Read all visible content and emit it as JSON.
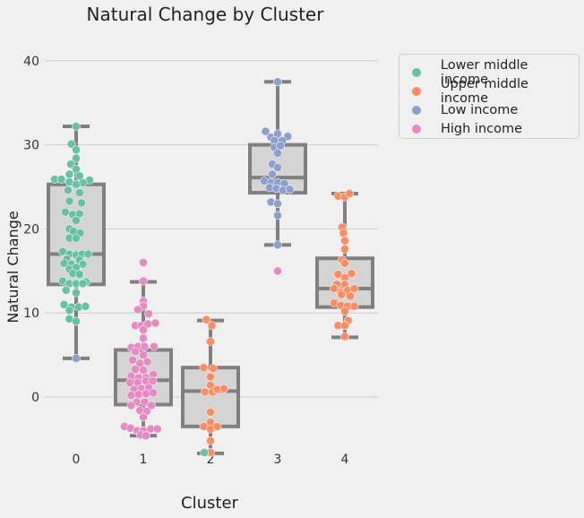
{
  "chart_data": {
    "type": "boxplot",
    "title": "Natural Change by Cluster",
    "xlabel": "Cluster",
    "ylabel": "Natural Change",
    "categories": [
      "0",
      "1",
      "2",
      "3",
      "4"
    ],
    "ylim": [
      -9.5,
      44
    ],
    "yticks": [
      0,
      10,
      20,
      30,
      40
    ],
    "grid": "horizontal",
    "legend_position": "outside-right",
    "box_color": "#d4d4d4",
    "box_edge_color": "#808080",
    "boxes": [
      {
        "category": "0",
        "whisker_low": 4.6,
        "q1": 13.4,
        "median": 17.0,
        "q3": 25.3,
        "whisker_high": 32.2
      },
      {
        "category": "1",
        "whisker_low": -4.6,
        "q1": -0.9,
        "median": 2.0,
        "q3": 5.6,
        "whisker_high": 13.7
      },
      {
        "category": "2",
        "whisker_low": -6.7,
        "q1": -3.5,
        "median": 0.7,
        "q3": 3.5,
        "whisker_high": 9.1
      },
      {
        "category": "3",
        "whisker_low": 18.1,
        "q1": 24.3,
        "median": 26.1,
        "q3": 30.0,
        "whisker_high": 37.5
      },
      {
        "category": "4",
        "whisker_low": 7.1,
        "q1": 10.7,
        "median": 12.9,
        "q3": 16.5,
        "whisker_high": 24.2
      }
    ],
    "series": [
      {
        "name": "Lower middle income",
        "color": "#66c2a5"
      },
      {
        "name": "Upper middle income",
        "color": "#fc8d62"
      },
      {
        "name": "Low income",
        "color": "#8da0cb"
      },
      {
        "name": "High income",
        "color": "#e78ac3"
      }
    ],
    "points": [
      {
        "cat": 0,
        "s": 0,
        "o": 0.0,
        "y": 32.2
      },
      {
        "cat": 0,
        "s": 0,
        "o": -0.07,
        "y": 30.1
      },
      {
        "cat": 0,
        "s": 0,
        "o": 0.0,
        "y": 29.4
      },
      {
        "cat": 0,
        "s": 0,
        "o": 0.0,
        "y": 28.4
      },
      {
        "cat": 0,
        "s": 0,
        "o": -0.08,
        "y": 27.7
      },
      {
        "cat": 0,
        "s": 0,
        "o": 0.0,
        "y": 27.1
      },
      {
        "cat": 0,
        "s": 0,
        "o": -0.1,
        "y": 26.5
      },
      {
        "cat": 0,
        "s": 0,
        "o": 0.05,
        "y": 26.3
      },
      {
        "cat": 0,
        "s": 0,
        "o": -0.32,
        "y": 25.9
      },
      {
        "cat": 0,
        "s": 0,
        "o": -0.22,
        "y": 25.9
      },
      {
        "cat": 0,
        "s": 0,
        "o": 0.2,
        "y": 25.8
      },
      {
        "cat": 0,
        "s": 0,
        "o": -0.1,
        "y": 25.6
      },
      {
        "cat": 0,
        "s": 0,
        "o": 0.1,
        "y": 25.5
      },
      {
        "cat": 0,
        "s": 0,
        "o": 0.0,
        "y": 25.3
      },
      {
        "cat": 0,
        "s": 0,
        "o": -0.12,
        "y": 24.6
      },
      {
        "cat": 0,
        "s": 0,
        "o": 0.05,
        "y": 24.3
      },
      {
        "cat": 0,
        "s": 0,
        "o": -0.1,
        "y": 23.3
      },
      {
        "cat": 0,
        "s": 0,
        "o": 0.08,
        "y": 23.1
      },
      {
        "cat": 0,
        "s": 0,
        "o": -0.16,
        "y": 22.0
      },
      {
        "cat": 0,
        "s": 0,
        "o": -0.05,
        "y": 21.7
      },
      {
        "cat": 0,
        "s": 0,
        "o": 0.05,
        "y": 21.8
      },
      {
        "cat": 0,
        "s": 0,
        "o": 0.0,
        "y": 21.0
      },
      {
        "cat": 0,
        "s": 0,
        "o": -0.1,
        "y": 20.0
      },
      {
        "cat": 0,
        "s": 0,
        "o": -0.04,
        "y": 19.7
      },
      {
        "cat": 0,
        "s": 0,
        "o": 0.06,
        "y": 19.5
      },
      {
        "cat": 0,
        "s": 0,
        "o": -0.1,
        "y": 18.9
      },
      {
        "cat": 0,
        "s": 0,
        "o": 0.0,
        "y": 18.9
      },
      {
        "cat": 0,
        "s": 0,
        "o": -0.2,
        "y": 17.3
      },
      {
        "cat": 0,
        "s": 0,
        "o": -0.1,
        "y": 17.0
      },
      {
        "cat": 0,
        "s": 0,
        "o": 0.0,
        "y": 16.9
      },
      {
        "cat": 0,
        "s": 0,
        "o": 0.09,
        "y": 17.0
      },
      {
        "cat": 0,
        "s": 0,
        "o": 0.18,
        "y": 17.0
      },
      {
        "cat": 0,
        "s": 0,
        "o": -0.14,
        "y": 16.4
      },
      {
        "cat": 0,
        "s": 0,
        "o": 0.05,
        "y": 16.3
      },
      {
        "cat": 0,
        "s": 0,
        "o": -0.18,
        "y": 15.9
      },
      {
        "cat": 0,
        "s": 0,
        "o": -0.07,
        "y": 15.8
      },
      {
        "cat": 0,
        "s": 0,
        "o": 0.1,
        "y": 15.8
      },
      {
        "cat": 0,
        "s": 0,
        "o": -0.1,
        "y": 15.2
      },
      {
        "cat": 0,
        "s": 0,
        "o": 0.0,
        "y": 15.4
      },
      {
        "cat": 0,
        "s": 0,
        "o": -0.05,
        "y": 14.7
      },
      {
        "cat": 0,
        "s": 0,
        "o": 0.05,
        "y": 14.6
      },
      {
        "cat": 0,
        "s": 0,
        "o": -0.2,
        "y": 13.8
      },
      {
        "cat": 0,
        "s": 0,
        "o": 0.15,
        "y": 13.7
      },
      {
        "cat": 0,
        "s": 0,
        "o": -0.1,
        "y": 13.5
      },
      {
        "cat": 0,
        "s": 0,
        "o": 0.0,
        "y": 13.5
      },
      {
        "cat": 0,
        "s": 0,
        "o": 0.1,
        "y": 13.5
      },
      {
        "cat": 0,
        "s": 0,
        "o": -0.15,
        "y": 12.7
      },
      {
        "cat": 0,
        "s": 0,
        "o": 0.0,
        "y": 12.4
      },
      {
        "cat": 0,
        "s": 0,
        "o": -0.18,
        "y": 11.0
      },
      {
        "cat": 0,
        "s": 0,
        "o": -0.07,
        "y": 10.7
      },
      {
        "cat": 0,
        "s": 0,
        "o": 0.04,
        "y": 10.7
      },
      {
        "cat": 0,
        "s": 0,
        "o": 0.14,
        "y": 10.8
      },
      {
        "cat": 0,
        "s": 0,
        "o": -0.1,
        "y": 10.3
      },
      {
        "cat": 0,
        "s": 0,
        "o": -0.1,
        "y": 9.3
      },
      {
        "cat": 0,
        "s": 0,
        "o": 0.0,
        "y": 9.0
      },
      {
        "cat": 0,
        "s": 2,
        "o": 0.0,
        "y": 4.6
      },
      {
        "cat": 1,
        "s": 3,
        "o": 0.0,
        "y": 16.0
      },
      {
        "cat": 1,
        "s": 3,
        "o": 0.0,
        "y": 13.8
      },
      {
        "cat": 1,
        "s": 3,
        "o": 0.0,
        "y": 11.4
      },
      {
        "cat": 1,
        "s": 3,
        "o": 0.0,
        "y": 10.8
      },
      {
        "cat": 1,
        "s": 3,
        "o": -0.08,
        "y": 10.4
      },
      {
        "cat": 1,
        "s": 3,
        "o": 0.08,
        "y": 9.9
      },
      {
        "cat": 1,
        "s": 3,
        "o": -0.12,
        "y": 8.5
      },
      {
        "cat": 1,
        "s": 3,
        "o": -0.03,
        "y": 8.5
      },
      {
        "cat": 1,
        "s": 3,
        "o": 0.07,
        "y": 8.7
      },
      {
        "cat": 1,
        "s": 3,
        "o": 0.18,
        "y": 8.8
      },
      {
        "cat": 1,
        "s": 3,
        "o": 0.0,
        "y": 8.0
      },
      {
        "cat": 1,
        "s": 3,
        "o": 0.0,
        "y": 7.0
      },
      {
        "cat": 1,
        "s": 3,
        "o": -0.18,
        "y": 5.9
      },
      {
        "cat": 1,
        "s": 3,
        "o": -0.08,
        "y": 6.0
      },
      {
        "cat": 1,
        "s": 3,
        "o": 0.02,
        "y": 6.0
      },
      {
        "cat": 1,
        "s": 3,
        "o": 0.16,
        "y": 6.0
      },
      {
        "cat": 1,
        "s": 3,
        "o": -0.12,
        "y": 5.4
      },
      {
        "cat": 1,
        "s": 3,
        "o": 0.0,
        "y": 5.0
      },
      {
        "cat": 1,
        "s": 3,
        "o": -0.16,
        "y": 4.4
      },
      {
        "cat": 1,
        "s": 3,
        "o": -0.05,
        "y": 4.0
      },
      {
        "cat": 1,
        "s": 3,
        "o": 0.06,
        "y": 4.2
      },
      {
        "cat": 1,
        "s": 3,
        "o": -0.12,
        "y": 3.3
      },
      {
        "cat": 1,
        "s": 3,
        "o": 0.0,
        "y": 3.2
      },
      {
        "cat": 1,
        "s": 3,
        "o": -0.18,
        "y": 2.5
      },
      {
        "cat": 1,
        "s": 3,
        "o": -0.07,
        "y": 2.3
      },
      {
        "cat": 1,
        "s": 3,
        "o": 0.04,
        "y": 2.3
      },
      {
        "cat": 1,
        "s": 3,
        "o": 0.15,
        "y": 2.7
      },
      {
        "cat": 1,
        "s": 3,
        "o": -0.2,
        "y": 1.7
      },
      {
        "cat": 1,
        "s": 3,
        "o": -0.08,
        "y": 1.7
      },
      {
        "cat": 1,
        "s": 3,
        "o": 0.04,
        "y": 1.9
      },
      {
        "cat": 1,
        "s": 3,
        "o": 0.14,
        "y": 1.9
      },
      {
        "cat": 1,
        "s": 3,
        "o": -0.14,
        "y": 0.9
      },
      {
        "cat": 1,
        "s": 3,
        "o": -0.03,
        "y": 1.0
      },
      {
        "cat": 1,
        "s": 3,
        "o": 0.08,
        "y": 1.1
      },
      {
        "cat": 1,
        "s": 3,
        "o": -0.18,
        "y": 0.2
      },
      {
        "cat": 1,
        "s": 3,
        "o": -0.07,
        "y": 0.3
      },
      {
        "cat": 1,
        "s": 3,
        "o": 0.04,
        "y": 0.4
      },
      {
        "cat": 1,
        "s": 3,
        "o": 0.15,
        "y": 0.5
      },
      {
        "cat": 1,
        "s": 3,
        "o": -0.1,
        "y": -0.6
      },
      {
        "cat": 1,
        "s": 3,
        "o": 0.02,
        "y": -0.6
      },
      {
        "cat": 1,
        "s": 3,
        "o": -0.18,
        "y": -1.0
      },
      {
        "cat": 1,
        "s": 3,
        "o": 0.12,
        "y": -1.0
      },
      {
        "cat": 1,
        "s": 3,
        "o": -0.05,
        "y": -1.6
      },
      {
        "cat": 1,
        "s": 3,
        "o": 0.05,
        "y": -1.7
      },
      {
        "cat": 1,
        "s": 3,
        "o": 0.0,
        "y": -2.4
      },
      {
        "cat": 1,
        "s": 3,
        "o": -0.28,
        "y": -3.5
      },
      {
        "cat": 1,
        "s": 3,
        "o": -0.19,
        "y": -3.7
      },
      {
        "cat": 1,
        "s": 3,
        "o": -0.09,
        "y": -4.0
      },
      {
        "cat": 1,
        "s": 3,
        "o": 0.0,
        "y": -4.0
      },
      {
        "cat": 1,
        "s": 3,
        "o": 0.11,
        "y": -3.8
      },
      {
        "cat": 1,
        "s": 3,
        "o": 0.21,
        "y": -3.8
      },
      {
        "cat": 1,
        "s": 3,
        "o": -0.04,
        "y": -4.5
      },
      {
        "cat": 1,
        "s": 3,
        "o": 0.04,
        "y": -4.6
      },
      {
        "cat": 2,
        "s": 1,
        "o": -0.06,
        "y": 9.2
      },
      {
        "cat": 2,
        "s": 1,
        "o": 0.02,
        "y": 8.5
      },
      {
        "cat": 2,
        "s": 1,
        "o": 0.0,
        "y": 6.6
      },
      {
        "cat": 2,
        "s": 1,
        "o": -0.1,
        "y": 3.5
      },
      {
        "cat": 2,
        "s": 1,
        "o": 0.04,
        "y": 3.4
      },
      {
        "cat": 2,
        "s": 1,
        "o": 0.0,
        "y": 2.4
      },
      {
        "cat": 2,
        "s": 1,
        "o": 0.0,
        "y": 1.4
      },
      {
        "cat": 2,
        "s": 1,
        "o": -0.08,
        "y": 0.6
      },
      {
        "cat": 2,
        "s": 1,
        "o": 0.03,
        "y": 0.6
      },
      {
        "cat": 2,
        "s": 1,
        "o": 0.1,
        "y": 0.9
      },
      {
        "cat": 2,
        "s": 1,
        "o": 0.2,
        "y": 1.0
      },
      {
        "cat": 2,
        "s": 1,
        "o": 0.0,
        "y": -1.8
      },
      {
        "cat": 2,
        "s": 1,
        "o": 0.0,
        "y": -3.0
      },
      {
        "cat": 2,
        "s": 1,
        "o": -0.1,
        "y": -3.5
      },
      {
        "cat": 2,
        "s": 1,
        "o": 0.0,
        "y": -3.8
      },
      {
        "cat": 2,
        "s": 1,
        "o": 0.1,
        "y": -3.5
      },
      {
        "cat": 2,
        "s": 1,
        "o": 0.0,
        "y": -5.2
      },
      {
        "cat": 2,
        "s": 1,
        "o": 0.0,
        "y": -6.6
      },
      {
        "cat": 2,
        "s": 0,
        "o": -0.09,
        "y": -6.6
      },
      {
        "cat": 3,
        "s": 2,
        "o": 0.0,
        "y": 37.5
      },
      {
        "cat": 3,
        "s": 2,
        "o": -0.18,
        "y": 31.6
      },
      {
        "cat": 3,
        "s": 2,
        "o": -0.1,
        "y": 30.9
      },
      {
        "cat": 3,
        "s": 2,
        "o": 0.0,
        "y": 31.3
      },
      {
        "cat": 3,
        "s": 2,
        "o": 0.15,
        "y": 31.0
      },
      {
        "cat": 3,
        "s": 2,
        "o": -0.05,
        "y": 30.5
      },
      {
        "cat": 3,
        "s": 2,
        "o": 0.07,
        "y": 30.5
      },
      {
        "cat": 3,
        "s": 2,
        "o": -0.05,
        "y": 29.7
      },
      {
        "cat": 3,
        "s": 2,
        "o": 0.04,
        "y": 29.9
      },
      {
        "cat": 3,
        "s": 2,
        "o": 0.0,
        "y": 29.0
      },
      {
        "cat": 3,
        "s": 2,
        "o": -0.08,
        "y": 27.7
      },
      {
        "cat": 3,
        "s": 2,
        "o": 0.0,
        "y": 27.3
      },
      {
        "cat": 3,
        "s": 2,
        "o": -0.08,
        "y": 26.5
      },
      {
        "cat": 3,
        "s": 2,
        "o": -0.2,
        "y": 25.7
      },
      {
        "cat": 3,
        "s": 2,
        "o": -0.1,
        "y": 25.5
      },
      {
        "cat": 3,
        "s": 2,
        "o": 0.0,
        "y": 25.5
      },
      {
        "cat": 3,
        "s": 2,
        "o": 0.1,
        "y": 25.4
      },
      {
        "cat": 3,
        "s": 2,
        "o": -0.12,
        "y": 24.9
      },
      {
        "cat": 3,
        "s": 2,
        "o": -0.02,
        "y": 24.8
      },
      {
        "cat": 3,
        "s": 2,
        "o": 0.08,
        "y": 24.6
      },
      {
        "cat": 3,
        "s": 2,
        "o": 0.18,
        "y": 24.7
      },
      {
        "cat": 3,
        "s": 2,
        "o": -0.1,
        "y": 23.2
      },
      {
        "cat": 3,
        "s": 2,
        "o": 0.0,
        "y": 23.0
      },
      {
        "cat": 3,
        "s": 2,
        "o": 0.0,
        "y": 21.6
      },
      {
        "cat": 3,
        "s": 2,
        "o": 0.0,
        "y": 18.1
      },
      {
        "cat": 3,
        "s": 3,
        "o": 0.0,
        "y": 15.0
      },
      {
        "cat": 4,
        "s": 1,
        "o": -0.1,
        "y": 23.9
      },
      {
        "cat": 4,
        "s": 1,
        "o": 0.0,
        "y": 23.8
      },
      {
        "cat": 4,
        "s": 1,
        "o": 0.07,
        "y": 24.2
      },
      {
        "cat": 4,
        "s": 1,
        "o": -0.04,
        "y": 20.2
      },
      {
        "cat": 4,
        "s": 1,
        "o": -0.02,
        "y": 19.5
      },
      {
        "cat": 4,
        "s": 1,
        "o": 0.0,
        "y": 18.6
      },
      {
        "cat": 4,
        "s": 1,
        "o": 0.0,
        "y": 17.6
      },
      {
        "cat": 4,
        "s": 1,
        "o": -0.04,
        "y": 16.3
      },
      {
        "cat": 4,
        "s": 1,
        "o": 0.0,
        "y": 15.9
      },
      {
        "cat": 4,
        "s": 1,
        "o": -0.1,
        "y": 14.6
      },
      {
        "cat": 4,
        "s": 1,
        "o": 0.1,
        "y": 14.7
      },
      {
        "cat": 4,
        "s": 1,
        "o": 0.0,
        "y": 14.2
      },
      {
        "cat": 4,
        "s": 1,
        "o": -0.12,
        "y": 13.4
      },
      {
        "cat": 4,
        "s": 1,
        "o": 0.0,
        "y": 13.4
      },
      {
        "cat": 4,
        "s": 1,
        "o": -0.16,
        "y": 12.9
      },
      {
        "cat": 4,
        "s": 1,
        "o": -0.06,
        "y": 12.5
      },
      {
        "cat": 4,
        "s": 1,
        "o": 0.04,
        "y": 12.7
      },
      {
        "cat": 4,
        "s": 1,
        "o": 0.14,
        "y": 12.9
      },
      {
        "cat": 4,
        "s": 1,
        "o": -0.05,
        "y": 12.2
      },
      {
        "cat": 4,
        "s": 1,
        "o": 0.08,
        "y": 12.0
      },
      {
        "cat": 4,
        "s": 1,
        "o": -0.16,
        "y": 11.2
      },
      {
        "cat": 4,
        "s": 1,
        "o": -0.06,
        "y": 10.9
      },
      {
        "cat": 4,
        "s": 1,
        "o": 0.04,
        "y": 10.8
      },
      {
        "cat": 4,
        "s": 1,
        "o": 0.14,
        "y": 10.8
      },
      {
        "cat": 4,
        "s": 1,
        "o": 0.0,
        "y": 10.2
      },
      {
        "cat": 4,
        "s": 1,
        "o": 0.05,
        "y": 9.1
      },
      {
        "cat": 4,
        "s": 1,
        "o": -0.1,
        "y": 8.5
      },
      {
        "cat": 4,
        "s": 1,
        "o": 0.0,
        "y": 8.5
      },
      {
        "cat": 4,
        "s": 1,
        "o": 0.0,
        "y": 7.2
      }
    ]
  }
}
